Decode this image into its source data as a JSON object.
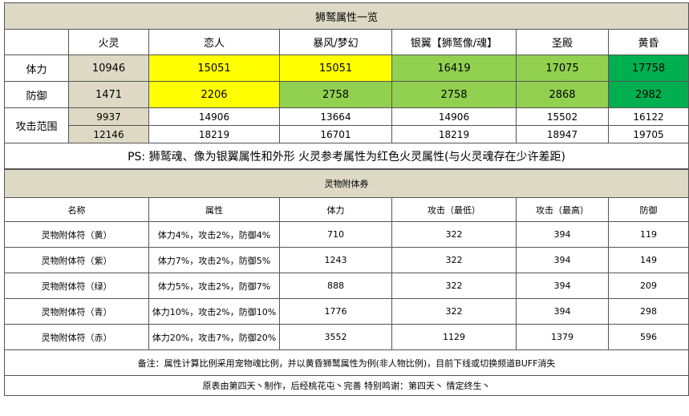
{
  "table1": {
    "title": "狮鹫属性一览",
    "columns": [
      "",
      "火灵",
      "恋人",
      "暴风/梦幻",
      "银翼【狮鹫像/魂】",
      "圣殿",
      "黄昏"
    ],
    "hp_label": "体力",
    "hp": [
      "10946",
      "15051",
      "15051",
      "16419",
      "17075",
      "17758"
    ],
    "def_label": "防御",
    "def": [
      "1471",
      "2206",
      "2758",
      "2758",
      "2868",
      "2982"
    ],
    "atk_label": "攻击范围",
    "atk_min": [
      "9937",
      "14906",
      "13664",
      "14906",
      "15502",
      "16122"
    ],
    "atk_max": [
      "12146",
      "18219",
      "16701",
      "18219",
      "18947",
      "19705"
    ],
    "note": "PS: 狮鹫魂、像为银翼属性和外形 火灵参考属性为红色火灵属性(与火灵魂存在少许差距)"
  },
  "table2": {
    "title": "灵物附体券",
    "columns": [
      "名称",
      "属性",
      "体力",
      "攻击（最低）",
      "攻击（最高）",
      "防御"
    ],
    "rows": [
      {
        "name": "灵物附体符（黄）",
        "attr": "体力4%，攻击2%，防御4%",
        "hp": "710",
        "atk_min": "322",
        "atk_max": "394",
        "def": "119"
      },
      {
        "name": "灵物附体符（紫）",
        "attr": "体力7%，攻击2%，防御5%",
        "hp": "1243",
        "atk_min": "322",
        "atk_max": "394",
        "def": "149"
      },
      {
        "name": "灵物附体符（绿）",
        "attr": "体力5%，攻击2%，防御7%",
        "hp": "888",
        "atk_min": "322",
        "atk_max": "394",
        "def": "209"
      },
      {
        "name": "灵物附体符（青）",
        "attr": "体力10%，攻击2%，防御10%",
        "hp": "1776",
        "atk_min": "322",
        "atk_max": "394",
        "def": "298"
      },
      {
        "name": "灵物附体符（赤）",
        "attr": "体力20%，攻击7%，防御20%",
        "hp": "3552",
        "atk_min": "1129",
        "atk_max": "1379",
        "def": "596"
      }
    ],
    "note": "备注：属性计算比例采用宠物魂比例，并以黄昏狮鹫属性为例(非人物比例)，目前下线或切换频道BUFF消失",
    "credits": "原表由第四天丶制作，后经桃花屯丶完善  特别鸣谢：第四天丶 情定终生丶"
  },
  "colors": {
    "header_bg": "#ddd9c4",
    "yellow": "#ffff00",
    "light_green": "#92d050",
    "dark_green": "#00b050"
  }
}
